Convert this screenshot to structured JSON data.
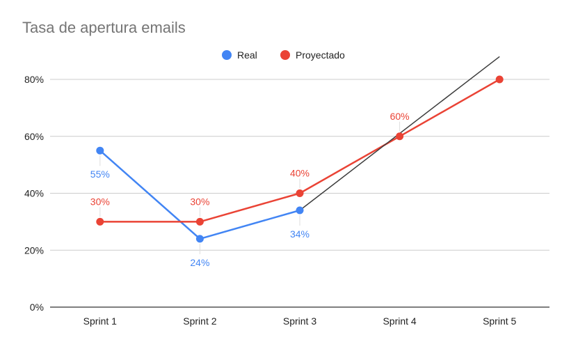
{
  "chart_data": {
    "type": "line",
    "title": "Tasa de apertura emails",
    "xlabel": "",
    "ylabel": "",
    "categories": [
      "Sprint 1",
      "Sprint 2",
      "Sprint 3",
      "Sprint 4",
      "Sprint 5"
    ],
    "ylim": [
      0,
      0.8
    ],
    "yticks": [
      0,
      0.2,
      0.4,
      0.6,
      0.8
    ],
    "ytick_labels": [
      "0%",
      "20%",
      "40%",
      "60%",
      "80%"
    ],
    "grid": true,
    "legend_position": "top-center",
    "series": [
      {
        "name": "Real",
        "color": "#4285f4",
        "values": [
          0.55,
          0.24,
          0.34,
          null,
          null
        ],
        "labels": [
          "55%",
          "24%",
          "34%",
          null,
          null
        ],
        "label_position": "below"
      },
      {
        "name": "Proyectado",
        "color": "#ea4335",
        "values": [
          0.3,
          0.3,
          0.4,
          0.6,
          0.8
        ],
        "labels": [
          "30%",
          "30%",
          "40%",
          "60%",
          null
        ],
        "label_position": "above"
      }
    ],
    "trendline": {
      "color": "#3c3c3c",
      "from": {
        "category": "Sprint 3",
        "value": 0.34
      },
      "to": {
        "category": "Sprint 5",
        "value": 0.88
      }
    }
  }
}
